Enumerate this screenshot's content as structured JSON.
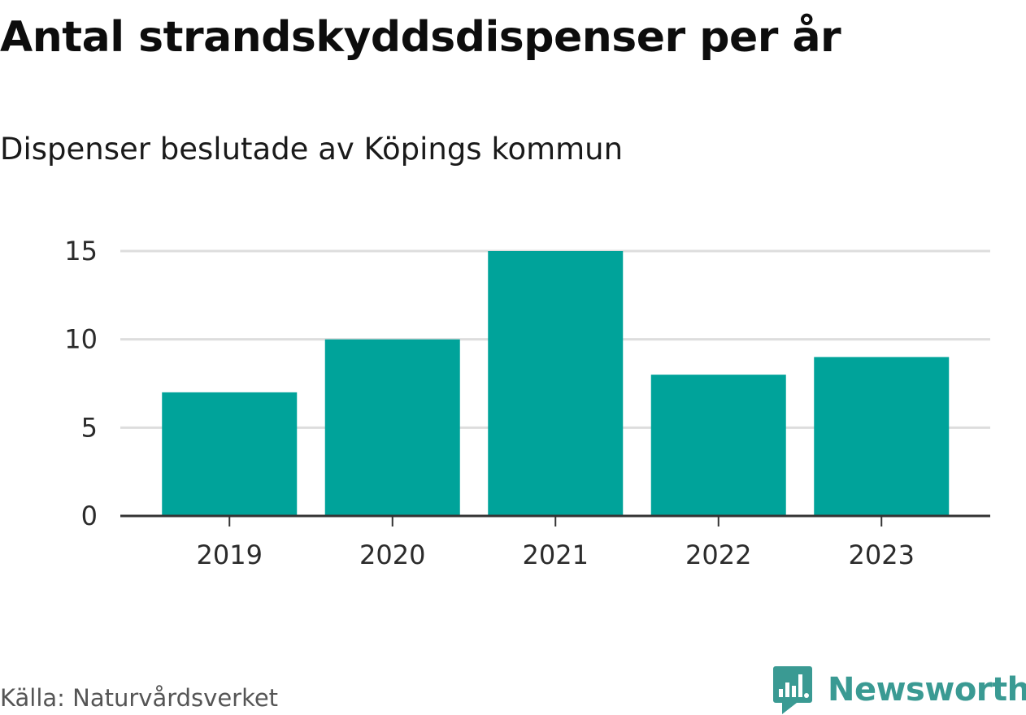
{
  "header": {
    "title": "Antal strandskyddsdispenser per år",
    "subtitle": "Dispenser beslutade av Köpings kommun"
  },
  "footer": {
    "source": "Källa: Naturvårdsverket",
    "brand": "Newsworthy"
  },
  "colors": {
    "bar": "#00a39a",
    "grid": "#dddddd",
    "axis": "#333333",
    "brand": "#3a9a93"
  },
  "chart_data": {
    "type": "bar",
    "title": "Antal strandskyddsdispenser per år",
    "subtitle": "Dispenser beslutade av Köpings kommun",
    "categories": [
      "2019",
      "2020",
      "2021",
      "2022",
      "2023"
    ],
    "values": [
      7,
      10,
      15,
      8,
      9
    ],
    "xlabel": "",
    "ylabel": "",
    "ylim": [
      0,
      15
    ],
    "yticks": [
      0,
      5,
      10,
      15
    ],
    "grid": true
  }
}
